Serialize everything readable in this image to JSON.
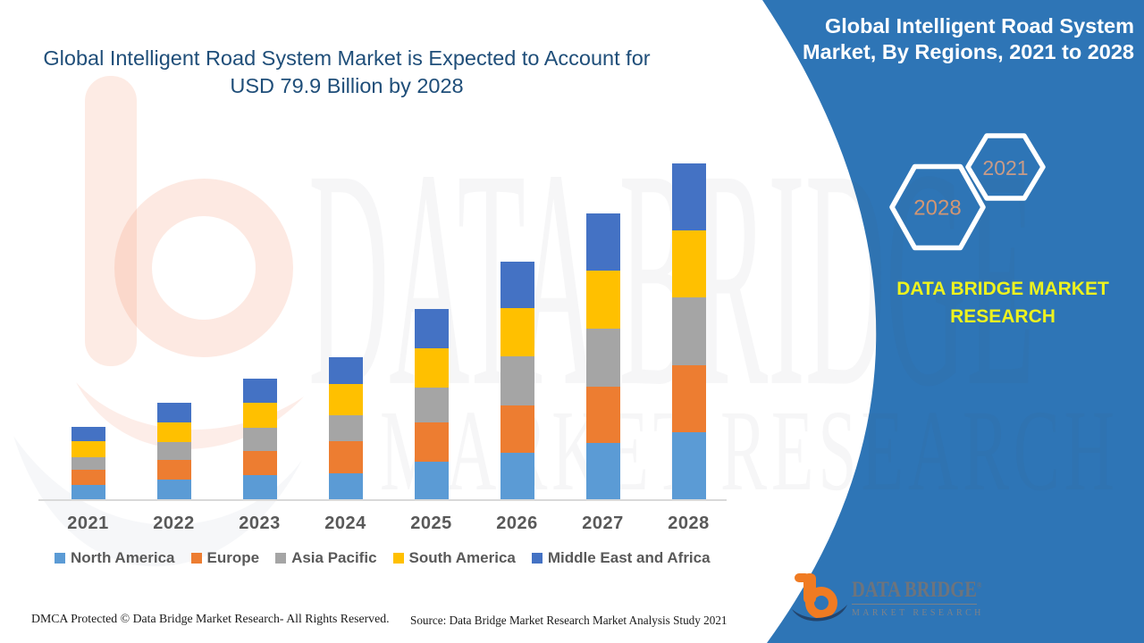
{
  "title": {
    "line1": "Global Intelligent Road System Market is Expected to Account for",
    "line2": "USD 79.9 Billion by 2028"
  },
  "right_panel": {
    "heading_line1": "Global Intelligent Road System",
    "heading_line2": "Market, By Regions, 2021 to 2028",
    "hexagons": [
      {
        "year": "2028"
      },
      {
        "year": "2021"
      }
    ],
    "brand_line1": "DATA BRIDGE MARKET",
    "brand_line2": "RESEARCH",
    "panel_color": "#2E75B6",
    "brand_text_color": "#EDF21F",
    "hexagon_year_colors": [
      "#D29673",
      "#C89B87"
    ]
  },
  "logo": {
    "line1": "DATA BRIDGE",
    "registered": "®",
    "line2": "MARKET RESEARCH"
  },
  "footer": {
    "left": "DMCA Protected © Data Bridge Market Research- All Rights Reserved.",
    "source": "Source: Data Bridge Market Research Market Analysis Study 2021"
  },
  "watermark": {
    "line1": "DATA BRIDGE",
    "line2": "MARKET RESEARCH"
  },
  "chart_data": {
    "type": "bar",
    "stacked": true,
    "title": "Global Intelligent Road System Market, By Regions, 2021 to 2028",
    "unit": "USD Billion",
    "categories": [
      "2021",
      "2022",
      "2023",
      "2024",
      "2025",
      "2026",
      "2027",
      "2028"
    ],
    "series": [
      {
        "name": "North America",
        "color": "#5B9BD5",
        "values": [
          3.3,
          4.6,
          5.7,
          6.2,
          8.9,
          11.0,
          13.5,
          15.9
        ]
      },
      {
        "name": "Europe",
        "color": "#ED7D31",
        "values": [
          3.7,
          4.8,
          5.7,
          7.7,
          9.4,
          11.3,
          13.3,
          16.0
        ]
      },
      {
        "name": "Asia Pacific",
        "color": "#A5A5A5",
        "values": [
          3.1,
          4.3,
          5.7,
          6.2,
          8.4,
          11.7,
          13.8,
          16.1
        ]
      },
      {
        "name": "South America",
        "color": "#FFC000",
        "values": [
          3.7,
          4.7,
          5.8,
          7.4,
          9.3,
          11.5,
          13.8,
          16.0
        ]
      },
      {
        "name": "Middle East and Africa",
        "color": "#4472C4",
        "values": [
          3.4,
          4.5,
          5.9,
          6.4,
          9.3,
          11.2,
          13.6,
          15.9
        ]
      }
    ],
    "ylim": [
      0,
      85
    ],
    "gridlines": false,
    "legend_position": "bottom"
  }
}
